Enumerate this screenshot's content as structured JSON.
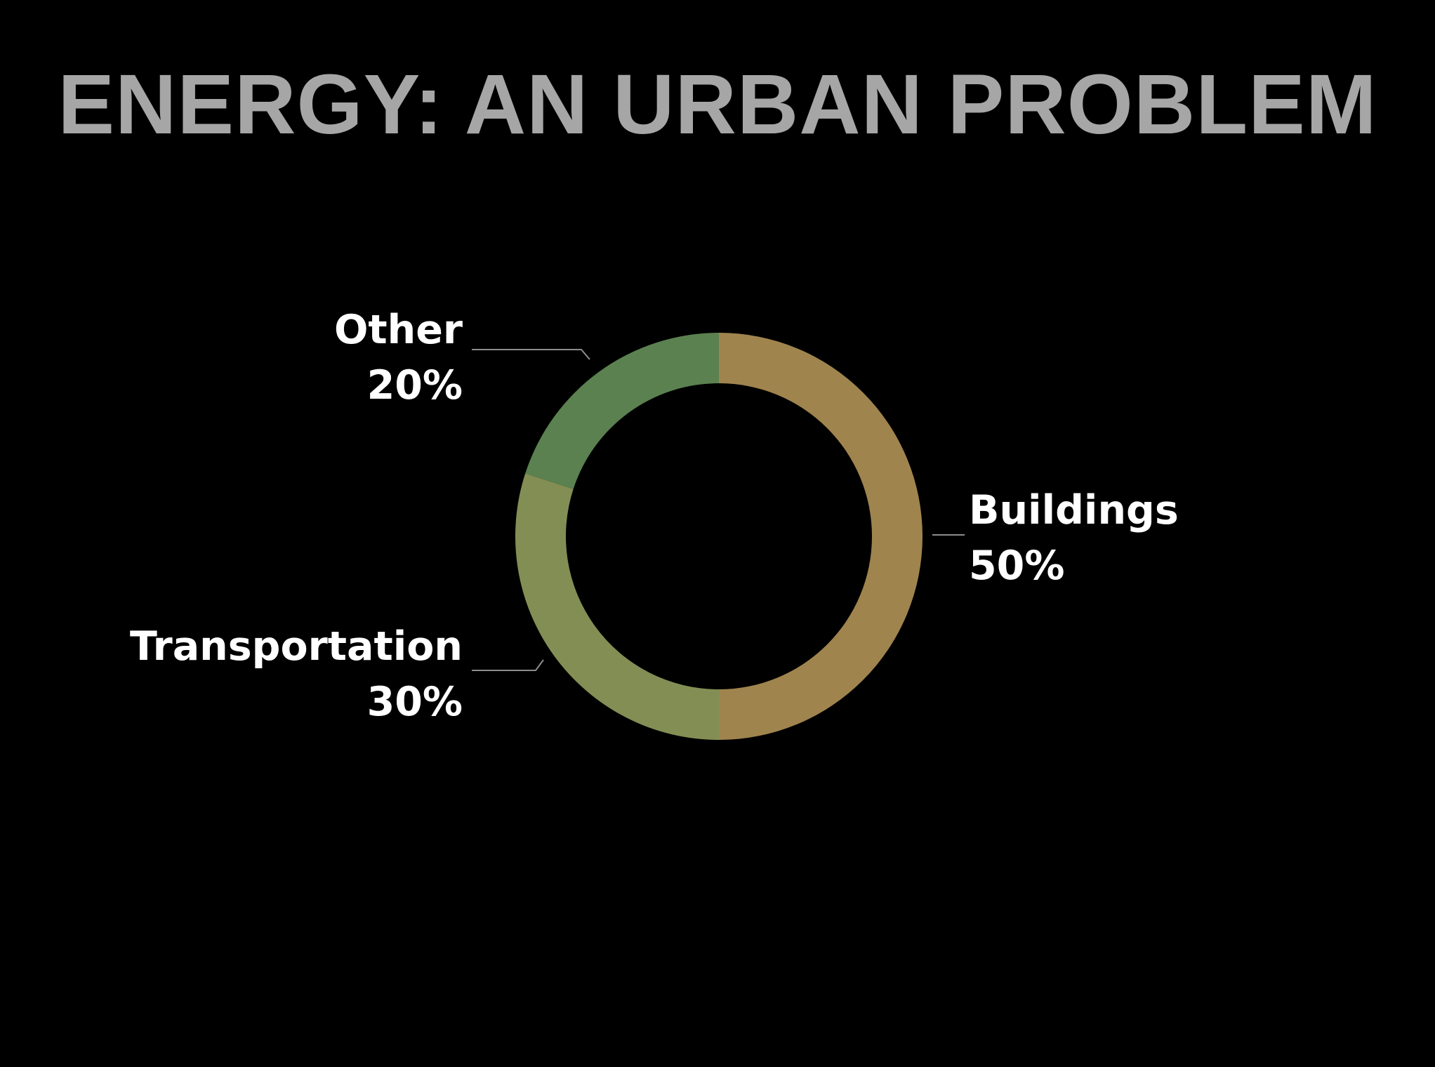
{
  "slide": {
    "title": "ENERGY: AN URBAN PROBLEM"
  },
  "chart_data": {
    "type": "pie",
    "variant": "donut",
    "title": "ENERGY: AN URBAN PROBLEM",
    "slices": [
      {
        "label": "Buildings",
        "value": 50,
        "display": "50%",
        "color": "#a0844e"
      },
      {
        "label": "Transportation",
        "value": 30,
        "display": "30%",
        "color": "#838e55"
      },
      {
        "label": "Other",
        "value": 20,
        "display": "20%",
        "color": "#5b8150"
      }
    ],
    "start_angle": "12 o'clock",
    "direction": "clockwise",
    "legend": "none",
    "data_labels": "outside with leader lines"
  },
  "colors": {
    "background": "#000000",
    "title": "#a6a6a6",
    "labels": "#ffffff",
    "leader_lines": "#8c8c8c"
  }
}
